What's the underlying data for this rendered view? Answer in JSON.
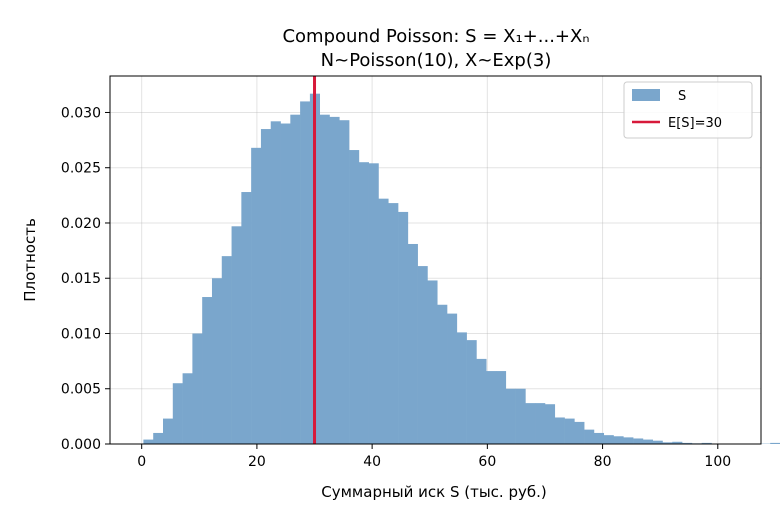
{
  "chart_data": {
    "type": "bar",
    "title": "Compound Poisson: S = X₁+...+Xₙ",
    "subtitle": "N~Poisson(10), X~Exp(3)",
    "xlabel": "Суммарный иск S (тыс. руб.)",
    "ylabel": "Плотность",
    "xlim": [
      -5.5,
      107.5
    ],
    "ylim": [
      0,
      0.0333
    ],
    "xticks": [
      0,
      20,
      40,
      60,
      80,
      100
    ],
    "yticks": [
      0.0,
      0.005,
      0.01,
      0.015,
      0.02,
      0.025,
      0.03
    ],
    "xtick_labels": [
      "0",
      "20",
      "40",
      "60",
      "80",
      "100"
    ],
    "ytick_labels": [
      "0.000",
      "0.005",
      "0.010",
      "0.015",
      "0.020",
      "0.025",
      "0.030"
    ],
    "grid": true,
    "legend_position": "top-right",
    "histogram": {
      "name": "S",
      "color": "#7aa6cc",
      "bin_width": 1.7,
      "bin_start": 0.3,
      "values": [
        0.0004,
        0.001,
        0.0023,
        0.0055,
        0.0064,
        0.01,
        0.0133,
        0.015,
        0.017,
        0.0197,
        0.0228,
        0.0268,
        0.0285,
        0.0292,
        0.029,
        0.0298,
        0.031,
        0.0317,
        0.0298,
        0.0296,
        0.0293,
        0.0266,
        0.0255,
        0.0254,
        0.0222,
        0.0218,
        0.021,
        0.0181,
        0.0161,
        0.0148,
        0.0126,
        0.0118,
        0.0101,
        0.0094,
        0.0077,
        0.0066,
        0.0066,
        0.005,
        0.005,
        0.0037,
        0.0037,
        0.0036,
        0.0024,
        0.0023,
        0.002,
        0.0013,
        0.001,
        0.0008,
        0.0007,
        0.0006,
        0.0005,
        0.0004,
        0.0003,
        0.00015,
        0.0002,
        0.0001,
        6e-05,
        0.0001,
        3e-05,
        3e-05,
        3e-05,
        3e-05,
        3e-05,
        3e-05,
        0.0001,
        3e-05,
        0.0001,
        3e-05,
        3e-05,
        0.0001
      ]
    },
    "reference_line": {
      "name": "E[S]=30",
      "x": 30,
      "color": "#d7193a"
    },
    "legend": [
      {
        "label": "S",
        "kind": "patch",
        "color": "#7aa6cc"
      },
      {
        "label": "E[S]=30",
        "kind": "line",
        "color": "#d7193a"
      }
    ]
  }
}
